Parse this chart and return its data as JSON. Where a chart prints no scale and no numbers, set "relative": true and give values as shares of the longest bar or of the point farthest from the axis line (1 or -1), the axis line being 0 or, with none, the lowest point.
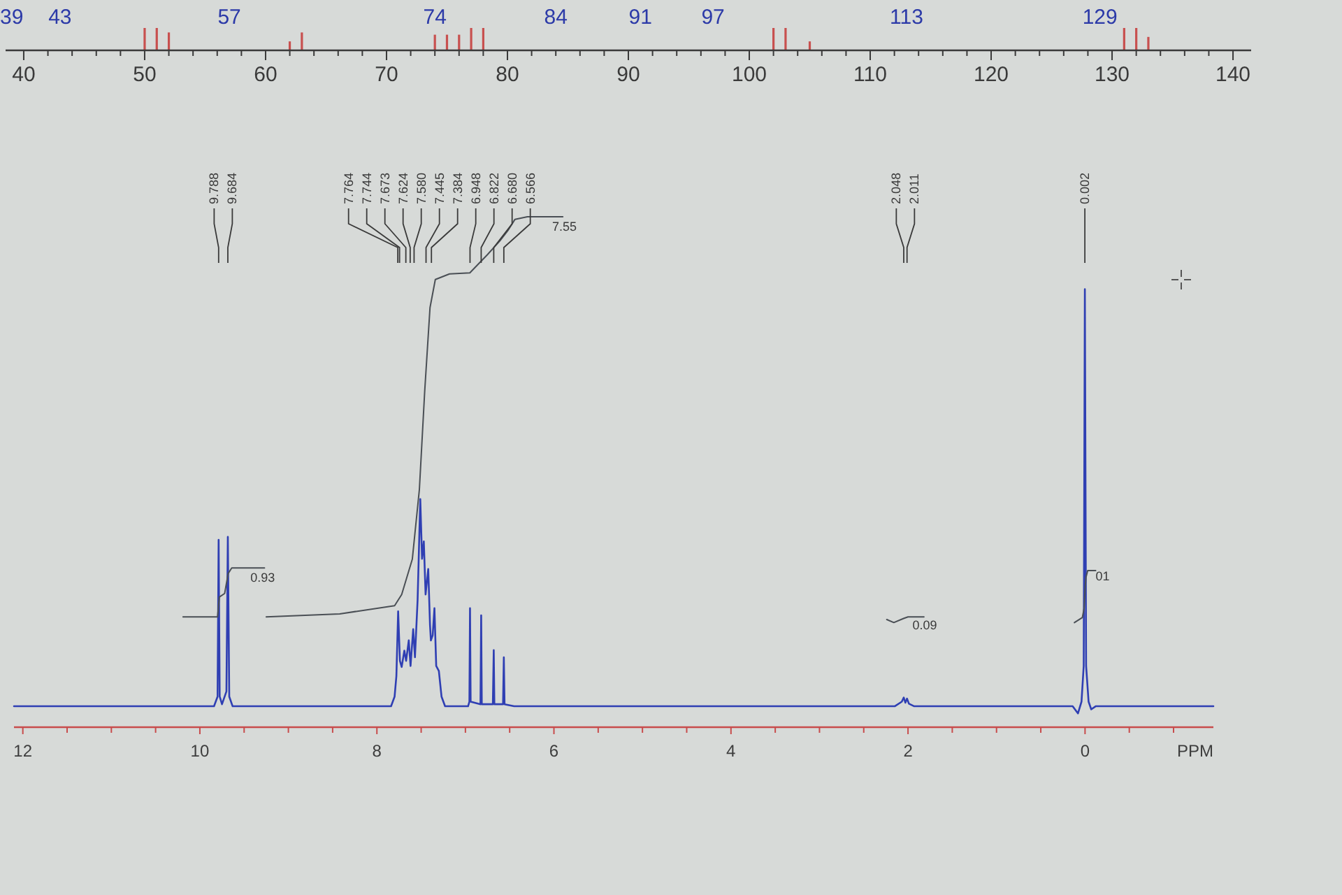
{
  "chart_data": [
    {
      "type": "bar",
      "relative": true,
      "color": "#c8504f",
      "x": [
        50,
        51,
        52,
        62,
        63,
        74,
        75,
        76,
        77,
        78,
        102,
        103,
        105,
        131,
        132,
        133
      ],
      "values": [
        1,
        1,
        0.8,
        0.4,
        0.8,
        0.7,
        0.7,
        0.7,
        1,
        1,
        1,
        1,
        0.4,
        1,
        1,
        0.6
      ],
      "xlim": [
        38.5,
        141.5
      ],
      "xticks": [
        40,
        {
          "value": 42,
          "label": null
        },
        {
          "value": 44,
          "label": null
        },
        {
          "value": 46,
          "label": null
        },
        {
          "value": 48,
          "label": null
        },
        50,
        {
          "value": 52,
          "label": null
        },
        {
          "value": 54,
          "label": null
        },
        {
          "value": 56,
          "label": null
        },
        {
          "value": 58,
          "label": null
        },
        60,
        {
          "value": 62,
          "label": null
        },
        {
          "value": 64,
          "label": null
        },
        {
          "value": 66,
          "label": null
        },
        {
          "value": 68,
          "label": null
        },
        70,
        {
          "value": 72,
          "label": null
        },
        {
          "value": 74,
          "label": null
        },
        {
          "value": 76,
          "label": null
        },
        {
          "value": 78,
          "label": null
        },
        80,
        {
          "value": 82,
          "label": null
        },
        {
          "value": 84,
          "label": null
        },
        {
          "value": 86,
          "label": null
        },
        {
          "value": 88,
          "label": null
        },
        90,
        {
          "value": 92,
          "label": null
        },
        {
          "value": 94,
          "label": null
        },
        {
          "value": 96,
          "label": null
        },
        {
          "value": 98,
          "label": null
        },
        100,
        {
          "value": 102,
          "label": null
        },
        {
          "value": 104,
          "label": null
        },
        {
          "value": 106,
          "label": null
        },
        {
          "value": 108,
          "label": null
        },
        110,
        {
          "value": 112,
          "label": null
        },
        {
          "value": 114,
          "label": null
        },
        {
          "value": 116,
          "label": null
        },
        {
          "value": 118,
          "label": null
        },
        120,
        {
          "value": 122,
          "label": null
        },
        {
          "value": 124,
          "label": null
        },
        {
          "value": 126,
          "label": null
        },
        {
          "value": 128,
          "label": null
        },
        130,
        {
          "value": 132,
          "label": null
        },
        {
          "value": 134,
          "label": null
        },
        {
          "value": 136,
          "label": null
        },
        {
          "value": 138,
          "label": null
        },
        140
      ],
      "x2lim": [
        38.5,
        141.5
      ],
      "x2ticks": [
        39,
        43,
        57,
        74,
        84,
        91,
        97,
        113,
        129
      ]
    },
    {
      "type": "line",
      "relative": true,
      "xlabel": "PPM",
      "xlim": [
        12.1,
        -1.45
      ],
      "xticks": [
        12,
        {
          "value": 11.5,
          "label": null
        },
        {
          "value": 11,
          "label": null
        },
        {
          "value": 10.5,
          "label": null
        },
        10,
        {
          "value": 9.5,
          "label": null
        },
        {
          "value": 9,
          "label": null
        },
        {
          "value": 8.5,
          "label": null
        },
        8,
        {
          "value": 7.5,
          "label": null
        },
        {
          "value": 7,
          "label": null
        },
        {
          "value": 6.5,
          "label": null
        },
        6,
        {
          "value": 5.5,
          "label": null
        },
        {
          "value": 5,
          "label": null
        },
        {
          "value": 4.5,
          "label": null
        },
        4,
        {
          "value": 3.5,
          "label": null
        },
        {
          "value": 3,
          "label": null
        },
        {
          "value": 2.5,
          "label": null
        },
        2,
        {
          "value": 1.5,
          "label": null
        },
        {
          "value": 1,
          "label": null
        },
        {
          "value": 0.5,
          "label": null
        },
        0,
        {
          "value": -0.5,
          "label": null
        },
        {
          "value": -1,
          "label": null
        }
      ],
      "series": [
        {
          "color": "#2f3fb3",
          "x": [
            12.1,
            9.84,
            9.8,
            9.788,
            9.776,
            9.75,
            9.7,
            9.684,
            9.668,
            9.63,
            7.84,
            7.8,
            7.78,
            7.76,
            7.74,
            7.72,
            7.69,
            7.67,
            7.64,
            7.62,
            7.59,
            7.57,
            7.54,
            7.51,
            7.49,
            7.47,
            7.45,
            7.42,
            7.4,
            7.39,
            7.37,
            7.35,
            7.33,
            7.3,
            7.27,
            7.23,
            6.97,
            6.955,
            6.948,
            6.941,
            6.83,
            6.822,
            6.815,
            6.69,
            6.68,
            6.673,
            6.575,
            6.566,
            6.558,
            6.45,
            2.15,
            2.07,
            2.048,
            2.03,
            2.011,
            1.99,
            1.93,
            0.14,
            0.08,
            0.04,
            0.015,
            0.002,
            -0.012,
            -0.04,
            -0.07,
            -0.12,
            -1.45
          ],
          "values": [
            0.041,
            0.041,
            0.06,
            0.367,
            0.06,
            0.045,
            0.07,
            0.373,
            0.06,
            0.041,
            0.041,
            0.06,
            0.1,
            0.227,
            0.13,
            0.118,
            0.15,
            0.13,
            0.17,
            0.12,
            0.192,
            0.137,
            0.25,
            0.447,
            0.33,
            0.364,
            0.26,
            0.31,
            0.2,
            0.17,
            0.18,
            0.233,
            0.12,
            0.11,
            0.06,
            0.041,
            0.041,
            0.05,
            0.233,
            0.05,
            0.045,
            0.219,
            0.045,
            0.045,
            0.151,
            0.045,
            0.045,
            0.137,
            0.045,
            0.041,
            0.041,
            0.05,
            0.058,
            0.048,
            0.056,
            0.046,
            0.041,
            0.041,
            0.027,
            0.05,
            0.12,
            0.858,
            0.12,
            0.05,
            0.035,
            0.041,
            0.041
          ]
        },
        {
          "color": "#4a4f55",
          "x": [
            10.19,
            9.8,
            9.78,
            9.72,
            9.68,
            9.64,
            9.27
          ],
          "values": [
            0.216,
            0.216,
            0.255,
            0.262,
            0.301,
            0.312,
            0.312
          ]
        },
        {
          "color": "#4a4f55",
          "x": [
            9.25,
            8.42,
            7.8,
            7.72,
            7.6,
            7.52,
            7.46,
            7.4,
            7.34,
            7.18,
            6.95,
            6.84,
            6.75,
            6.61,
            6.52,
            6.44,
            6.3,
            5.9
          ],
          "values": [
            0.216,
            0.222,
            0.238,
            0.26,
            0.329,
            0.466,
            0.658,
            0.822,
            0.877,
            0.888,
            0.89,
            0.91,
            0.926,
            0.953,
            0.973,
            0.995,
            1,
            1
          ]
        },
        {
          "color": "#4a4f55",
          "x": [
            2.24,
            2.16,
            2.05,
            2,
            1.82
          ],
          "values": [
            0.211,
            0.205,
            0.213,
            0.216,
            0.216
          ]
        },
        {
          "color": "#4a4f55",
          "x": [
            0.12,
            0.03,
            0.01,
            0,
            -0.01,
            -0.03,
            -0.12
          ],
          "values": [
            0.205,
            0.215,
            0.233,
            0.27,
            0.293,
            0.307,
            0.307
          ]
        }
      ],
      "annotations": [
        {
          "text": "9.788",
          "x": 9.788
        },
        {
          "text": "9.684",
          "x": 9.684
        },
        {
          "text": "7.764",
          "x": 7.764
        },
        {
          "text": "7.744",
          "x": 7.744
        },
        {
          "text": "7.673",
          "x": 7.673
        },
        {
          "text": "7.624",
          "x": 7.624
        },
        {
          "text": "7.580",
          "x": 7.58
        },
        {
          "text": "7.445",
          "x": 7.445
        },
        {
          "text": "7.384",
          "x": 7.384
        },
        {
          "text": "6.948",
          "x": 6.948
        },
        {
          "text": "6.822",
          "x": 6.822
        },
        {
          "text": "6.680",
          "x": 6.68
        },
        {
          "text": "6.566",
          "x": 6.566
        },
        {
          "text": "2.048",
          "x": 2.048
        },
        {
          "text": "2.011",
          "x": 2.011
        },
        {
          "text": "0.002",
          "x": 0.002
        },
        {
          "text": "0.93",
          "x": 9.43,
          "y": 0.302
        },
        {
          "text": "7.55",
          "x": 6.02,
          "y": 0.989
        },
        {
          "text": "0.09",
          "x": 1.95,
          "y": 0.208
        },
        {
          "text": "01",
          "x": -0.12,
          "y": 0.304
        }
      ]
    }
  ]
}
